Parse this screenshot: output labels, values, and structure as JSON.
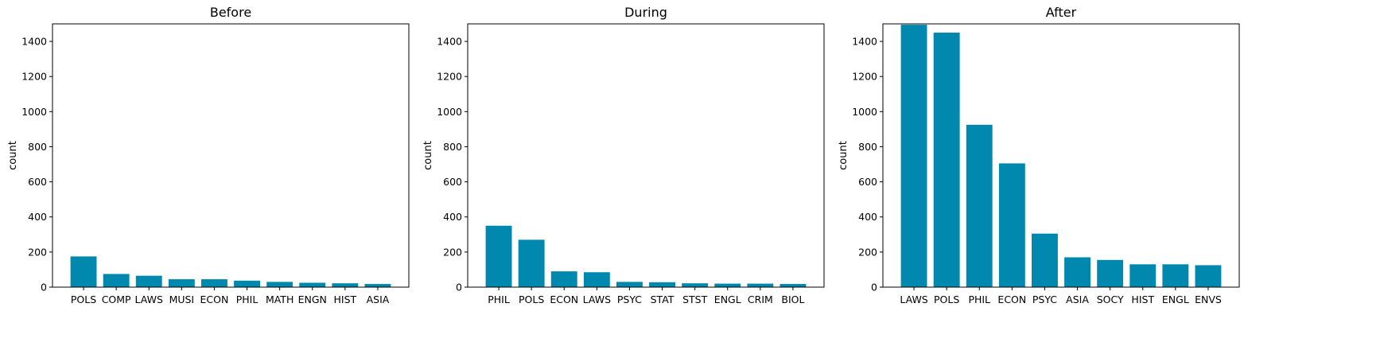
{
  "colors": {
    "bar": "#0088ae"
  },
  "chart_data": [
    {
      "type": "bar",
      "title": "Before",
      "ylabel": "count",
      "xlabel": "",
      "ylim": [
        0,
        1500
      ],
      "yticks": [
        0,
        200,
        400,
        600,
        800,
        1000,
        1200,
        1400
      ],
      "categories": [
        "POLS",
        "COMP",
        "LAWS",
        "MUSI",
        "ECON",
        "PHIL",
        "MATH",
        "ENGN",
        "HIST",
        "ASIA"
      ],
      "values": [
        175,
        75,
        65,
        45,
        45,
        37,
        30,
        25,
        22,
        18
      ]
    },
    {
      "type": "bar",
      "title": "During",
      "ylabel": "count",
      "xlabel": "",
      "ylim": [
        0,
        1500
      ],
      "yticks": [
        0,
        200,
        400,
        600,
        800,
        1000,
        1200,
        1400
      ],
      "categories": [
        "PHIL",
        "POLS",
        "ECON",
        "LAWS",
        "PSYC",
        "STAT",
        "STST",
        "ENGL",
        "CRIM",
        "BIOL"
      ],
      "values": [
        350,
        270,
        90,
        85,
        30,
        28,
        22,
        20,
        20,
        18
      ]
    },
    {
      "type": "bar",
      "title": "After",
      "ylabel": "count",
      "xlabel": "",
      "ylim": [
        0,
        1500
      ],
      "yticks": [
        0,
        200,
        400,
        600,
        800,
        1000,
        1200,
        1400
      ],
      "categories": [
        "LAWS",
        "POLS",
        "PHIL",
        "ECON",
        "PSYC",
        "ASIA",
        "SOCY",
        "HIST",
        "ENGL",
        "ENVS"
      ],
      "values": [
        1495,
        1450,
        925,
        705,
        305,
        170,
        155,
        130,
        130,
        125
      ]
    }
  ]
}
